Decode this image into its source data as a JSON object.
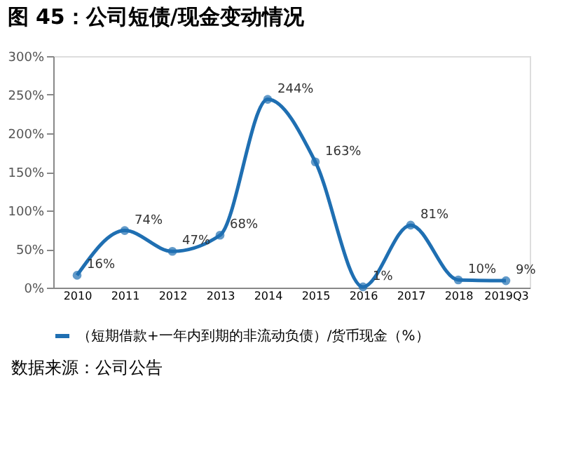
{
  "chart_data": {
    "type": "line",
    "title": "图 45：公司短债/现金变动情况",
    "categories": [
      "2010",
      "2011",
      "2012",
      "2013",
      "2014",
      "2015",
      "2016",
      "2017",
      "2018",
      "2019Q3"
    ],
    "series": [
      {
        "name": "（短期借款+一年内到期的非流动负债）/货币现金（%）",
        "color": "#1f6fb2",
        "values": [
          16,
          74,
          47,
          68,
          244,
          163,
          1,
          81,
          10,
          9
        ],
        "value_labels": [
          "16%",
          "74%",
          "47%",
          "68%",
          "244%",
          "163%",
          "1%",
          "81%",
          "10%",
          "9%"
        ]
      }
    ],
    "ylim": [
      0,
      300
    ],
    "yticks": [
      {
        "value": 0,
        "label": "0%"
      },
      {
        "value": 50,
        "label": "50%"
      },
      {
        "value": 100,
        "label": "100%"
      },
      {
        "value": 150,
        "label": "150%"
      },
      {
        "value": 200,
        "label": "200%"
      },
      {
        "value": 250,
        "label": "250%"
      },
      {
        "value": 300,
        "label": "300%"
      }
    ],
    "grid": false,
    "legend": "bottom",
    "marker": "circle",
    "line_style": "solid",
    "annotations": [
      "数据来源：公司公告"
    ]
  }
}
